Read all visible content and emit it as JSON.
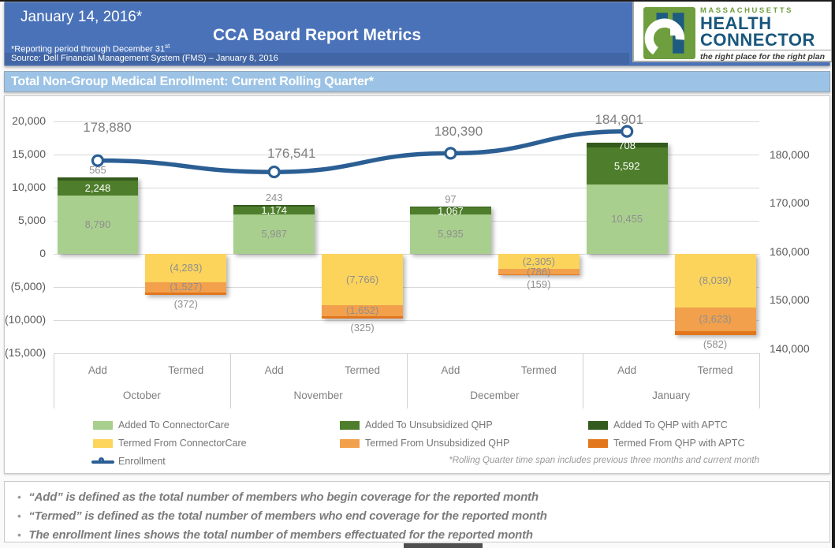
{
  "header": {
    "date": "January 14, 2016*",
    "title": "CCA Board Report Metrics",
    "reporting_note": "*Reporting period through December 31",
    "reporting_note_sup": "st",
    "source_note": "Source: Dell Financial Management System (FMS) – January 8, 2016"
  },
  "logo": {
    "region": "MASSACHUSETTS",
    "line1": "HEALTH",
    "line2": "CONNECTOR",
    "tagline": "the right place for the right plan",
    "green": "#6f9e3f",
    "blue": "#19577c"
  },
  "section": {
    "title": "Total Non-Group Medical Enrollment: Current Rolling Quarter*"
  },
  "chart_data": {
    "type": "bar",
    "subtype": "stacked column combo with line on secondary axis",
    "title": "Total Non-Group Medical Enrollment: Current Rolling Quarter",
    "months": [
      "October",
      "November",
      "December",
      "January"
    ],
    "group_categories": [
      "Add",
      "Termed"
    ],
    "bar_series": [
      {
        "name": "Added To ConnectorCare",
        "color": "#a9cf8e",
        "column": "Add",
        "values": [
          8790,
          5987,
          5935,
          10455
        ],
        "labels": [
          "8,790",
          "5,987",
          "5,935",
          "10,455"
        ]
      },
      {
        "name": "Added To Unsubsidized QHP",
        "color": "#4e7e2b",
        "column": "Add",
        "values": [
          2248,
          1174,
          1067,
          5592
        ],
        "labels": [
          "2,248",
          "1,174",
          "1,067",
          "5,592"
        ]
      },
      {
        "name": "Added To QHP with APTC",
        "color": "#345a1d",
        "column": "Add",
        "values": [
          565,
          243,
          97,
          708
        ],
        "labels": [
          "565",
          "243",
          "97",
          "708"
        ]
      },
      {
        "name": "Termed From ConnectorCare",
        "color": "#fcd45c",
        "column": "Termed",
        "values": [
          -4283,
          -7766,
          -2305,
          -8039
        ],
        "labels": [
          "(4,283)",
          "(7,766)",
          "(2,305)",
          "(8,039)"
        ]
      },
      {
        "name": "Termed From Unsubsidized QHP",
        "color": "#f2a04c",
        "column": "Termed",
        "values": [
          -1527,
          -1652,
          -786,
          -3623
        ],
        "labels": [
          "(1,527)",
          "(1,652)",
          "(786)",
          "(3,623)"
        ]
      },
      {
        "name": "Termed From QHP with APTC",
        "color": "#e2761d",
        "column": "Termed",
        "values": [
          -372,
          -325,
          -159,
          -582
        ],
        "labels": [
          "(372)",
          "(325)",
          "(159)",
          "(582)"
        ]
      }
    ],
    "line_series": {
      "name": "Enrollment",
      "color": "#2b5f94",
      "values": [
        178880,
        176541,
        180390,
        184901
      ],
      "labels": [
        "178,880",
        "176,541",
        "180,390",
        "184,901"
      ]
    },
    "left_axis": {
      "min": -15000,
      "max": 20000,
      "step": 5000,
      "ticks": [
        "20,000",
        "15,000",
        "10,000",
        "5,000",
        "0",
        "(5,000)",
        "(10,000)",
        "(15,000)"
      ]
    },
    "right_axis": {
      "values": [
        180000,
        170000,
        160000,
        150000,
        140000
      ],
      "ticks": [
        "180,000",
        "170,000",
        "160,000",
        "150,000",
        "140,000"
      ]
    },
    "grid": true,
    "legend_position": "bottom"
  },
  "legend": {
    "items": [
      {
        "label": "Added To ConnectorCare",
        "color": "#a9cf8e",
        "type": "swatch"
      },
      {
        "label": "Added To Unsubsidized QHP",
        "color": "#4e7e2b",
        "type": "swatch"
      },
      {
        "label": "Added To QHP with APTC",
        "color": "#345a1d",
        "type": "swatch"
      },
      {
        "label": "Termed From ConnectorCare",
        "color": "#fcd45c",
        "type": "swatch"
      },
      {
        "label": "Termed From Unsubsidized QHP",
        "color": "#f2a04c",
        "type": "swatch"
      },
      {
        "label": "Termed From QHP with APTC",
        "color": "#e2761d",
        "type": "swatch"
      },
      {
        "label": "Enrollment",
        "color": "#2b5f94",
        "type": "line"
      }
    ],
    "footnote": "*Rolling Quarter time span includes previous three months and current month"
  },
  "bullets": [
    "“Add” is defined as the total number of members who begin coverage for the reported month",
    "“Termed” is defined as the total number of members who end coverage for the reported month",
    "The enrollment lines shows the total number of members effectuated for the reported month"
  ]
}
